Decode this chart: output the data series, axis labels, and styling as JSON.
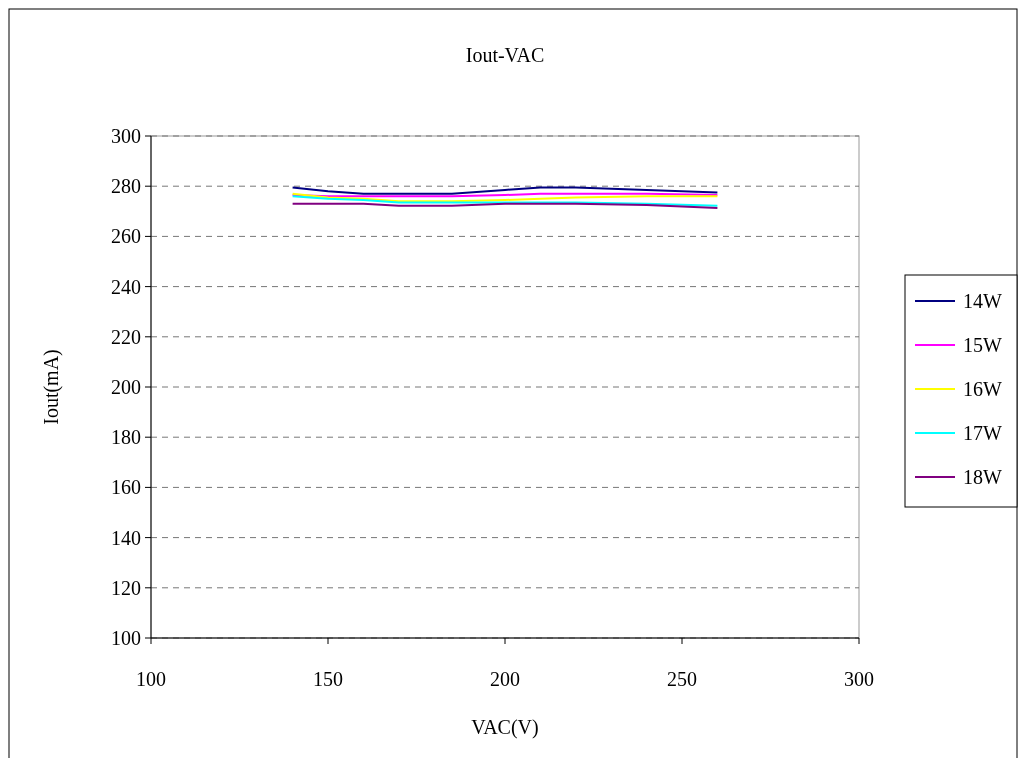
{
  "chart_data": {
    "type": "line",
    "title": "Iout-VAC",
    "xlabel": "VAC(V)",
    "ylabel": "Iout(mA)",
    "x": [
      140,
      150,
      160,
      170,
      185,
      200,
      210,
      220,
      240,
      260
    ],
    "series": [
      {
        "name": "14W",
        "color": "#000080",
        "values": [
          279.5,
          278,
          277,
          277,
          277,
          278.5,
          279.5,
          279.5,
          278.5,
          277.5
        ]
      },
      {
        "name": "15W",
        "color": "#ff00ff",
        "values": [
          276.5,
          276,
          276,
          276,
          276,
          276.5,
          277,
          277,
          277,
          276.5
        ]
      },
      {
        "name": "16W",
        "color": "#ffff00",
        "values": [
          277,
          275.5,
          275,
          274,
          274,
          274.5,
          275,
          275.5,
          276,
          276
        ]
      },
      {
        "name": "17W",
        "color": "#00ffff",
        "values": [
          276,
          275,
          274.5,
          273.5,
          273.5,
          273.5,
          273.5,
          273.5,
          273,
          272.2
        ]
      },
      {
        "name": "18W",
        "color": "#800080",
        "values": [
          273,
          273,
          273,
          272.2,
          272.2,
          273,
          273,
          273,
          272.5,
          271.3
        ]
      }
    ],
    "xlim": [
      100,
      300
    ],
    "xticks": [
      100,
      150,
      200,
      250,
      300
    ],
    "ylim": [
      100,
      300
    ],
    "yticks": [
      100,
      120,
      140,
      160,
      180,
      200,
      220,
      240,
      260,
      280,
      300
    ],
    "grid": "y",
    "legend": "right",
    "marker": "none",
    "line_style": "solid"
  }
}
